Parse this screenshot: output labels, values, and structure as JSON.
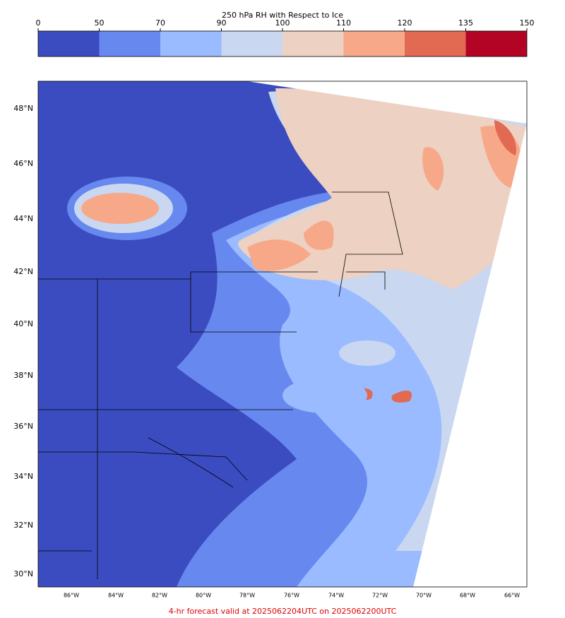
{
  "title": "250 hPa RH with Respect to Ice",
  "colorbar": {
    "bounds": [
      0,
      50,
      70,
      90,
      100,
      110,
      120,
      135,
      150
    ],
    "colors": [
      "#3b4cc0",
      "#6788ee",
      "#9abbff",
      "#c9d7f0",
      "#edd1c2",
      "#f7a889",
      "#e26952",
      "#b40426"
    ]
  },
  "map": {
    "lat_labels": [
      "48°N",
      "46°N",
      "44°N",
      "42°N",
      "40°N",
      "38°N",
      "36°N",
      "34°N",
      "32°N",
      "30°N"
    ],
    "lon_labels": [
      "86°W",
      "84°W",
      "82°W",
      "80°W",
      "78°W",
      "76°W",
      "74°W",
      "72°W",
      "70°W",
      "68°W",
      "66°W"
    ]
  },
  "footer": "4-hr forecast valid at 2025062204UTC on 2025062200UTC"
}
